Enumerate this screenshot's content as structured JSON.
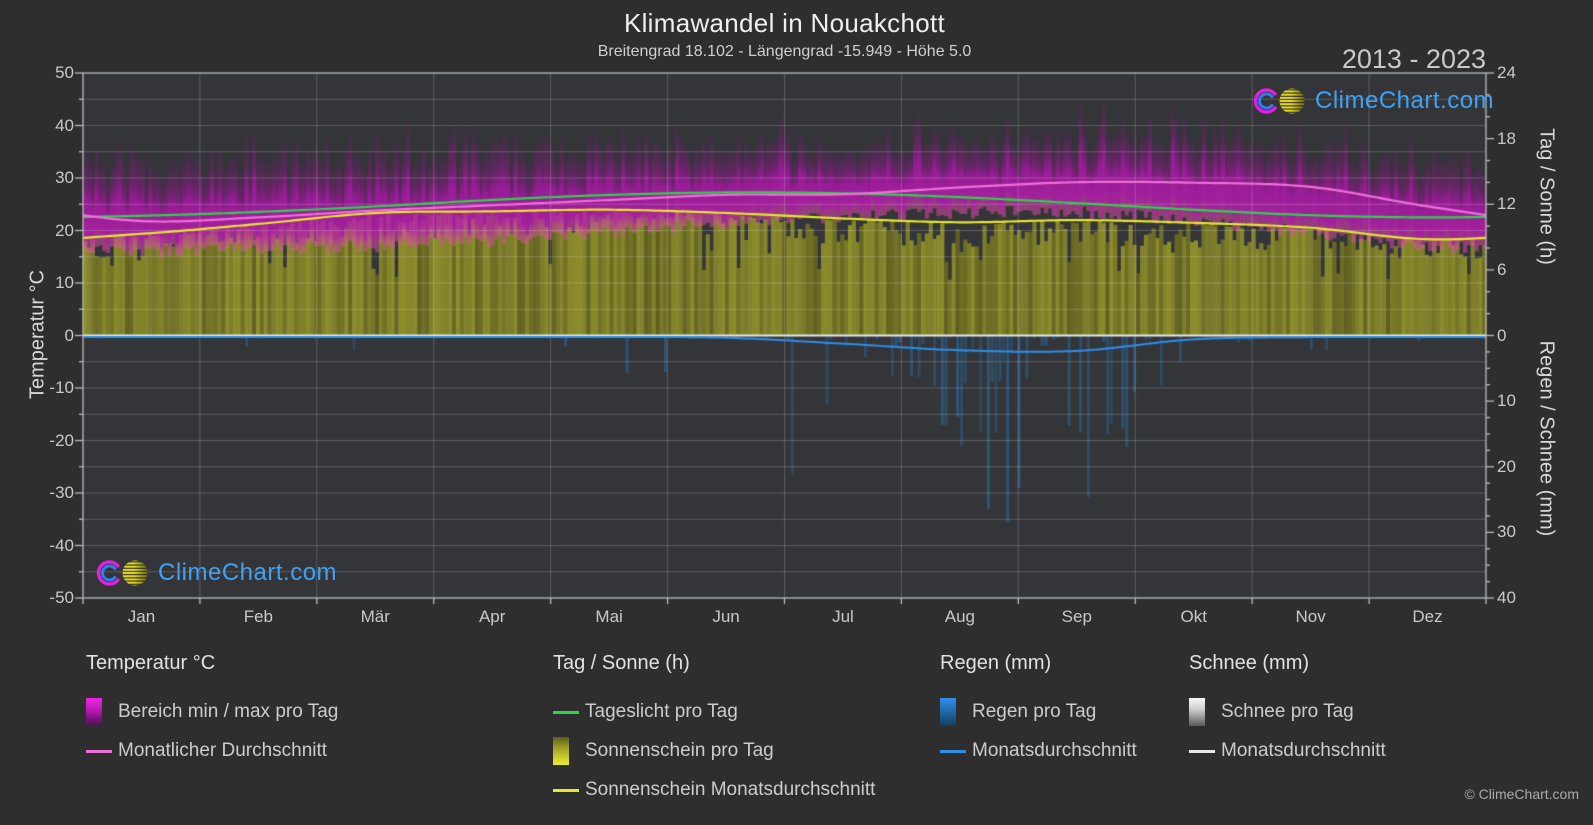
{
  "page": {
    "title": "Klimawandel in Nouakchott",
    "subtitle": "Breitengrad 18.102 - Längengrad -15.949 - Höhe 5.0",
    "year_range": "2013 - 2023",
    "watermark_text": "ClimeChart.com",
    "copyright": "© ClimeChart.com"
  },
  "axes": {
    "left_label": "Temperatur °C",
    "right_top_label": "Tag / Sonne (h)",
    "right_bottom_label": "Regen / Schnee (mm)",
    "temp_ticks": [
      50,
      40,
      30,
      20,
      10,
      0,
      -10,
      -20,
      -30,
      -40,
      -50
    ],
    "temp_range": [
      -50,
      50
    ],
    "sun_ticks": [
      24,
      18,
      12,
      6,
      0
    ],
    "sun_range": [
      0,
      24
    ],
    "precip_ticks": [
      10,
      20,
      30,
      40
    ],
    "precip_range": [
      0,
      40
    ],
    "months": [
      "Jan",
      "Feb",
      "Mär",
      "Apr",
      "Mai",
      "Jun",
      "Jul",
      "Aug",
      "Sep",
      "Okt",
      "Nov",
      "Dez"
    ]
  },
  "chart_data": {
    "type": "composite-climate",
    "title": "Klimawandel in Nouakchott",
    "months": [
      "Jan",
      "Feb",
      "Mär",
      "Apr",
      "Mai",
      "Jun",
      "Jul",
      "Aug",
      "Sep",
      "Okt",
      "Nov",
      "Dez"
    ],
    "series": [
      {
        "name": "Tageslicht pro Tag",
        "unit": "h",
        "style": "line",
        "color": "#2fd24b",
        "values": [
          10.95,
          11.3,
          11.8,
          12.4,
          12.85,
          13.08,
          13.0,
          12.65,
          12.1,
          11.5,
          11.0,
          10.8
        ]
      },
      {
        "name": "Sonnenschein Monatsdurchschnitt",
        "unit": "h",
        "style": "line",
        "color": "#e6e62e",
        "values": [
          9.3,
          10.2,
          11.2,
          11.35,
          11.5,
          11.2,
          10.7,
          10.35,
          10.55,
          10.3,
          9.85,
          8.8
        ]
      },
      {
        "name": "Sonnenschein pro Tag",
        "unit": "h",
        "style": "daily-area",
        "color": "#8e8e2b",
        "values": [
          9.3,
          10.2,
          11.2,
          11.35,
          11.5,
          11.2,
          10.7,
          10.35,
          10.55,
          10.3,
          9.85,
          8.8
        ]
      },
      {
        "name": "Monatlicher Durchschnitt",
        "unit": "°C",
        "style": "line",
        "color": "#f06fd8",
        "values": [
          21.8,
          22.5,
          23.8,
          24.8,
          25.8,
          26.8,
          26.9,
          28.2,
          29.2,
          29.1,
          28.3,
          24.6
        ]
      },
      {
        "name": "Bereich min pro Tag",
        "unit": "°C",
        "style": "daily-band-min",
        "color": "#b117ae",
        "values": [
          18.0,
          18.5,
          19.0,
          20.0,
          21.5,
          23.5,
          24.5,
          25.5,
          25.5,
          24.0,
          21.5,
          19.0
        ]
      },
      {
        "name": "Bereich max pro Tag",
        "unit": "°C",
        "style": "daily-band-max",
        "color": "#b117ae",
        "values": [
          29.5,
          30.0,
          31.5,
          32.5,
          33.0,
          33.5,
          33.0,
          34.0,
          35.0,
          34.5,
          32.5,
          30.0
        ]
      },
      {
        "name": "Regen Monatsdurchschnitt",
        "unit": "mm",
        "style": "line",
        "color": "#2d8fe8",
        "values": [
          0,
          0,
          0,
          0,
          0,
          0.1,
          1.0,
          2.0,
          2.1,
          0.35,
          0,
          0
        ]
      },
      {
        "name": "Schnee Monatsdurchschnitt",
        "unit": "mm",
        "style": "line",
        "color": "#e8e8e8",
        "values": [
          0,
          0,
          0,
          0,
          0,
          0,
          0,
          0,
          0,
          0,
          0,
          0
        ]
      }
    ],
    "rain_daily": {
      "name": "Regen pro Tag",
      "unit": "mm",
      "color": "#2a6ea6",
      "probability": [
        0.05,
        0.06,
        0.04,
        0.05,
        0.05,
        0.08,
        0.35,
        0.55,
        0.55,
        0.25,
        0.06,
        0.05
      ],
      "max_mm": [
        2,
        3,
        2,
        9,
        6,
        9,
        24,
        32,
        31,
        14,
        3,
        2
      ]
    },
    "noise_seed": 20131,
    "spike_max_extra_c": 9
  },
  "legend": {
    "groups": [
      {
        "header": "Temperatur °C",
        "items": [
          {
            "swatch": "grad-magenta",
            "label": "Bereich min / max pro Tag"
          },
          {
            "swatch": "line-pink",
            "label": "Monatlicher Durchschnitt"
          }
        ]
      },
      {
        "header": "Tag / Sonne (h)",
        "items": [
          {
            "swatch": "line-green",
            "label": "Tageslicht pro Tag"
          },
          {
            "swatch": "grad-yellow",
            "label": "Sonnenschein pro Tag"
          },
          {
            "swatch": "line-yellow",
            "label": "Sonnenschein Monatsdurchschnitt"
          }
        ]
      },
      {
        "header": "Regen (mm)",
        "items": [
          {
            "swatch": "grad-blue",
            "label": "Regen pro Tag"
          },
          {
            "swatch": "line-blue",
            "label": "Monatsdurchschnitt"
          }
        ]
      },
      {
        "header": "Schnee (mm)",
        "items": [
          {
            "swatch": "grad-white",
            "label": "Schnee pro Tag"
          },
          {
            "swatch": "line-white",
            "label": "Monatsdurchschnitt"
          }
        ]
      }
    ]
  },
  "colors": {
    "page_bg": "#2e2e2e",
    "plot_bg": "#343539",
    "grid": "rgba(255,255,255,0.20)",
    "axis": "#bcbcbc",
    "zero_line": "#e8e8e8",
    "band_core": "#b117ae",
    "sun_fill": "#8e8e2b",
    "rain_bar": "#2a6ea6",
    "logo_text": "#3fa2f5",
    "logo_ring_outer": "#e21fe2",
    "logo_ring_inner": "#2d7ef0",
    "logo_ball": "#e3d51f"
  }
}
